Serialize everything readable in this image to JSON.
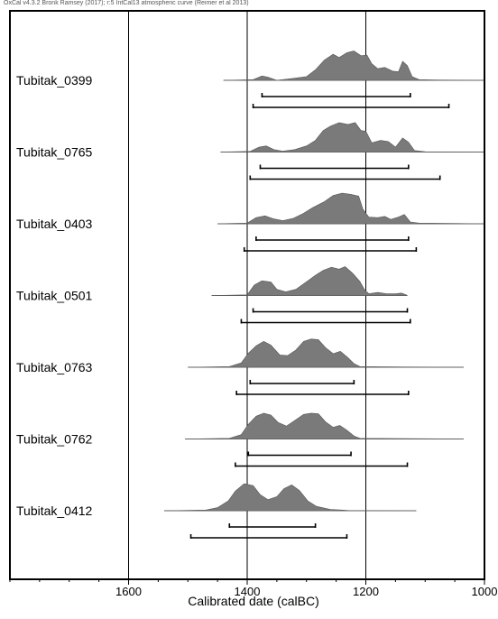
{
  "header": "OxCal v4.3.2 Bronk Ramsey (2017); r:5 IntCal13 atmospheric curve (Reimer et al 2013)",
  "chart_data": {
    "type": "area",
    "subtype": "radiocarbon-multiplot",
    "xlabel": "Calibrated date (calBC)",
    "xlim": [
      1800,
      1000
    ],
    "xticks": [
      1600,
      1400,
      1200,
      1000
    ],
    "x_reversed": true,
    "grid": "vertical lines at tick positions",
    "colors": {
      "fill": "#7a7a7a",
      "line": "#000000"
    },
    "samples": [
      {
        "name": "Tubitak_0399",
        "range_68": [
          1375,
          1125
        ],
        "range_95": [
          1390,
          1060
        ],
        "baseline": [
          1440,
          1000
        ],
        "profile": [
          [
            1440,
            0
          ],
          [
            1390,
            0.02
          ],
          [
            1375,
            0.14
          ],
          [
            1365,
            0.1
          ],
          [
            1350,
            0
          ],
          [
            1325,
            0.06
          ],
          [
            1300,
            0.12
          ],
          [
            1285,
            0.34
          ],
          [
            1270,
            0.66
          ],
          [
            1255,
            0.85
          ],
          [
            1245,
            0.74
          ],
          [
            1232,
            0.9
          ],
          [
            1220,
            0.96
          ],
          [
            1208,
            0.8
          ],
          [
            1198,
            0.82
          ],
          [
            1190,
            0.54
          ],
          [
            1180,
            0.38
          ],
          [
            1168,
            0.42
          ],
          [
            1155,
            0.3
          ],
          [
            1145,
            0.28
          ],
          [
            1138,
            0.62
          ],
          [
            1130,
            0.48
          ],
          [
            1122,
            0.12
          ],
          [
            1110,
            0.02
          ],
          [
            1080,
            0.01
          ],
          [
            1000,
            0
          ]
        ]
      },
      {
        "name": "Tubitak_0765",
        "range_68": [
          1378,
          1128
        ],
        "range_95": [
          1395,
          1075
        ],
        "baseline": [
          1445,
          1000
        ],
        "profile": [
          [
            1445,
            0
          ],
          [
            1395,
            0.02
          ],
          [
            1380,
            0.16
          ],
          [
            1368,
            0.2
          ],
          [
            1355,
            0.08
          ],
          [
            1340,
            0.03
          ],
          [
            1320,
            0.08
          ],
          [
            1300,
            0.2
          ],
          [
            1285,
            0.38
          ],
          [
            1272,
            0.7
          ],
          [
            1260,
            0.84
          ],
          [
            1245,
            0.96
          ],
          [
            1230,
            0.9
          ],
          [
            1218,
            0.96
          ],
          [
            1208,
            0.7
          ],
          [
            1200,
            0.68
          ],
          [
            1190,
            0.3
          ],
          [
            1175,
            0.38
          ],
          [
            1162,
            0.34
          ],
          [
            1150,
            0.16
          ],
          [
            1138,
            0.46
          ],
          [
            1128,
            0.32
          ],
          [
            1118,
            0.05
          ],
          [
            1100,
            0.01
          ],
          [
            1000,
            0
          ]
        ]
      },
      {
        "name": "Tubitak_0403",
        "range_68": [
          1385,
          1128
        ],
        "range_95": [
          1405,
          1115
        ],
        "baseline": [
          1450,
          1000
        ],
        "profile": [
          [
            1450,
            0
          ],
          [
            1400,
            0.02
          ],
          [
            1385,
            0.2
          ],
          [
            1370,
            0.26
          ],
          [
            1355,
            0.16
          ],
          [
            1340,
            0.1
          ],
          [
            1322,
            0.18
          ],
          [
            1305,
            0.34
          ],
          [
            1290,
            0.52
          ],
          [
            1270,
            0.72
          ],
          [
            1255,
            0.92
          ],
          [
            1240,
            1.0
          ],
          [
            1225,
            0.96
          ],
          [
            1212,
            0.9
          ],
          [
            1205,
            0.48
          ],
          [
            1195,
            0.22
          ],
          [
            1180,
            0.2
          ],
          [
            1168,
            0.24
          ],
          [
            1158,
            0.14
          ],
          [
            1145,
            0.22
          ],
          [
            1135,
            0.3
          ],
          [
            1125,
            0.06
          ],
          [
            1110,
            0.02
          ],
          [
            1000,
            0
          ]
        ]
      },
      {
        "name": "Tubitak_0501",
        "range_68": [
          1390,
          1130
        ],
        "range_95": [
          1410,
          1125
        ],
        "baseline": [
          1460,
          1130
        ],
        "profile": [
          [
            1460,
            0
          ],
          [
            1400,
            0.02
          ],
          [
            1388,
            0.34
          ],
          [
            1375,
            0.48
          ],
          [
            1360,
            0.44
          ],
          [
            1350,
            0.2
          ],
          [
            1335,
            0.12
          ],
          [
            1318,
            0.2
          ],
          [
            1300,
            0.45
          ],
          [
            1285,
            0.66
          ],
          [
            1272,
            0.82
          ],
          [
            1258,
            0.92
          ],
          [
            1245,
            0.86
          ],
          [
            1235,
            0.94
          ],
          [
            1222,
            0.72
          ],
          [
            1210,
            0.46
          ],
          [
            1202,
            0.18
          ],
          [
            1195,
            0.06
          ],
          [
            1180,
            0.1
          ],
          [
            1165,
            0.06
          ],
          [
            1150,
            0.06
          ],
          [
            1140,
            0.08
          ],
          [
            1132,
            0.02
          ],
          [
            1130,
            0
          ]
        ]
      },
      {
        "name": "Tubitak_0763",
        "range_68": [
          1395,
          1220
        ],
        "range_95": [
          1418,
          1128
        ],
        "baseline": [
          1500,
          1035
        ],
        "profile": [
          [
            1500,
            0
          ],
          [
            1430,
            0.02
          ],
          [
            1410,
            0.14
          ],
          [
            1398,
            0.46
          ],
          [
            1385,
            0.7
          ],
          [
            1372,
            0.84
          ],
          [
            1360,
            0.72
          ],
          [
            1345,
            0.4
          ],
          [
            1332,
            0.38
          ],
          [
            1318,
            0.56
          ],
          [
            1305,
            0.84
          ],
          [
            1292,
            0.92
          ],
          [
            1280,
            0.9
          ],
          [
            1268,
            0.64
          ],
          [
            1255,
            0.44
          ],
          [
            1243,
            0.52
          ],
          [
            1232,
            0.34
          ],
          [
            1220,
            0.12
          ],
          [
            1210,
            0.02
          ],
          [
            1140,
            0.01
          ],
          [
            1035,
            0
          ]
        ]
      },
      {
        "name": "Tubitak_0762",
        "range_68": [
          1398,
          1225
        ],
        "range_95": [
          1420,
          1130
        ],
        "baseline": [
          1505,
          1035
        ],
        "profile": [
          [
            1505,
            0
          ],
          [
            1430,
            0.02
          ],
          [
            1410,
            0.14
          ],
          [
            1398,
            0.48
          ],
          [
            1385,
            0.74
          ],
          [
            1372,
            0.84
          ],
          [
            1360,
            0.78
          ],
          [
            1348,
            0.54
          ],
          [
            1334,
            0.42
          ],
          [
            1320,
            0.6
          ],
          [
            1305,
            0.8
          ],
          [
            1292,
            0.84
          ],
          [
            1280,
            0.82
          ],
          [
            1268,
            0.56
          ],
          [
            1255,
            0.38
          ],
          [
            1244,
            0.44
          ],
          [
            1233,
            0.3
          ],
          [
            1220,
            0.1
          ],
          [
            1210,
            0.02
          ],
          [
            1035,
            0
          ]
        ]
      },
      {
        "name": "Tubitak_0412",
        "range_68": [
          1430,
          1285
        ],
        "range_95": [
          1495,
          1232
        ],
        "baseline": [
          1540,
          1115
        ],
        "profile": [
          [
            1540,
            0
          ],
          [
            1470,
            0.02
          ],
          [
            1450,
            0.1
          ],
          [
            1432,
            0.32
          ],
          [
            1420,
            0.64
          ],
          [
            1405,
            0.88
          ],
          [
            1390,
            0.82
          ],
          [
            1378,
            0.52
          ],
          [
            1365,
            0.36
          ],
          [
            1350,
            0.46
          ],
          [
            1338,
            0.72
          ],
          [
            1325,
            0.84
          ],
          [
            1312,
            0.66
          ],
          [
            1298,
            0.32
          ],
          [
            1283,
            0.14
          ],
          [
            1260,
            0.04
          ],
          [
            1230,
            0.01
          ],
          [
            1115,
            0
          ]
        ]
      }
    ]
  }
}
